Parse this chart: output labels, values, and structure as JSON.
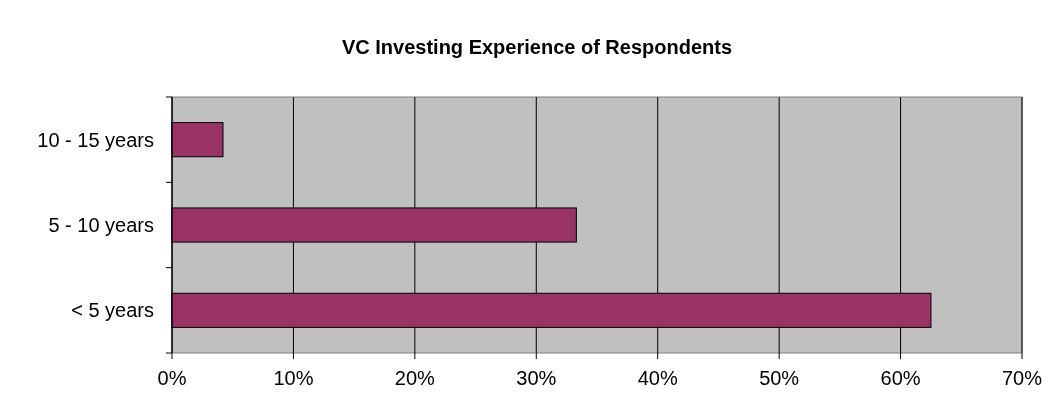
{
  "chart_data": {
    "type": "bar",
    "orientation": "horizontal",
    "title": "VC Investing Experience of Respondents",
    "categories": [
      "10 - 15 years",
      "5 - 10 years",
      "< 5 years"
    ],
    "values": [
      4.2,
      33.3,
      62.5
    ],
    "color": "#993366",
    "xlim": [
      0,
      70
    ],
    "xticks": [
      {
        "value": 0,
        "label": "0%"
      },
      {
        "value": 10,
        "label": "10%"
      },
      {
        "value": 20,
        "label": "20%"
      },
      {
        "value": 30,
        "label": "30%"
      },
      {
        "value": 40,
        "label": "40%"
      },
      {
        "value": 50,
        "label": "50%"
      },
      {
        "value": 60,
        "label": "60%"
      },
      {
        "value": 70,
        "label": "70%"
      }
    ],
    "grid": "x"
  }
}
